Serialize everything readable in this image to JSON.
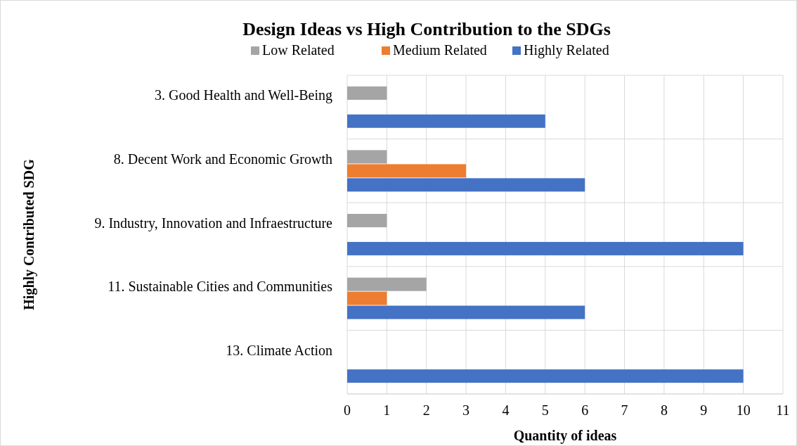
{
  "chart_data": {
    "type": "bar",
    "orientation": "horizontal",
    "title": "Design Ideas vs High Contribution to the SDGs",
    "xlabel": "Quantity of ideas",
    "ylabel": "Highly Contributed SDG",
    "categories": [
      "3. Good Health and Well-Being",
      "8. Decent Work and Economic Growth",
      "9. Industry, Innovation and Infraestructure",
      "11. Sustainable Cities and Communities",
      "13. Climate Action"
    ],
    "series": [
      {
        "name": "Low Related",
        "color": "#a5a5a5",
        "values": [
          1,
          1,
          1,
          2,
          null
        ]
      },
      {
        "name": "Medium Related",
        "color": "#ed7d31",
        "values": [
          null,
          3,
          null,
          1,
          null
        ]
      },
      {
        "name": "Highly Related",
        "color": "#4472c4",
        "values": [
          5,
          6,
          10,
          6,
          10
        ]
      }
    ],
    "xlim": [
      0,
      11
    ],
    "xticks": [
      0,
      1,
      2,
      3,
      4,
      5,
      6,
      7,
      8,
      9,
      10,
      11
    ],
    "grid": true,
    "legend": "top"
  }
}
